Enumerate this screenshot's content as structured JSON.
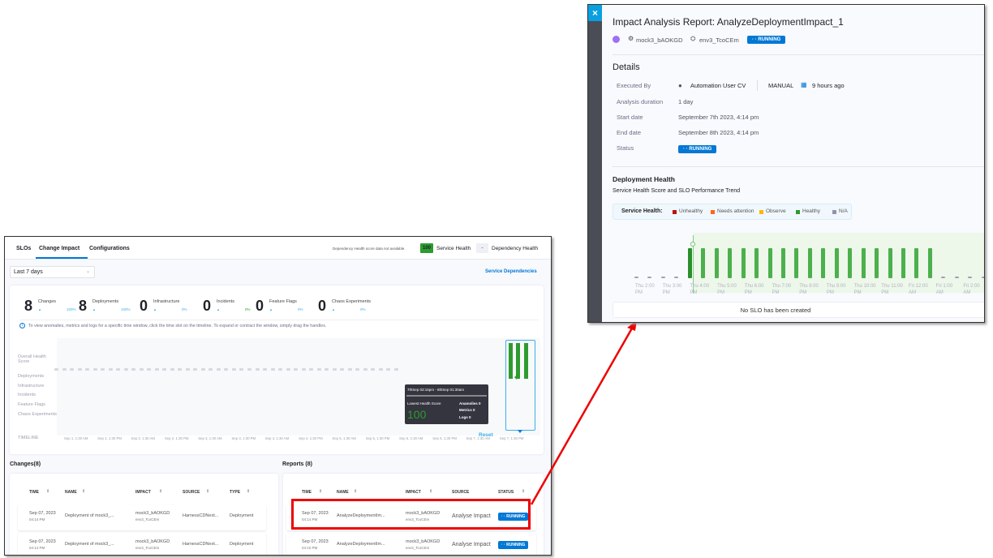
{
  "left": {
    "tabs": [
      "SLOs",
      "Change Impact",
      "Configurations"
    ],
    "active_tab": "Change Impact",
    "dependency_note": "Dependency Health score data not available.",
    "service_health_score": "100",
    "service_health_label": "Service Health",
    "dependency_health_score": "-",
    "dependency_health_label": "Dependency Health",
    "range_select": "Last 7 days",
    "service_dependencies_link": "Service Dependencies",
    "summary": [
      {
        "count": "8",
        "label": "Changes",
        "pct": "100%"
      },
      {
        "count": "8",
        "label": "Deployments",
        "pct": "100%"
      },
      {
        "count": "0",
        "label": "Infrastructure",
        "pct": "0%"
      },
      {
        "count": "0",
        "label": "Incidents",
        "pct": "0%"
      },
      {
        "count": "0",
        "label": "Feature Flags",
        "pct": "0%"
      },
      {
        "count": "0",
        "label": "Chaos Experiments",
        "pct": "0%"
      }
    ],
    "info": "To view anomalies, metrics and logs for a specific time window, click the time slot on the timeline. To expand or contract the window, simply drag the handles.",
    "row_labels": [
      "Overall Health Score",
      "Deployments",
      "Infrastructure",
      "Incidents",
      "Feature Flags",
      "Chaos Experiments"
    ],
    "timeline_label": "TIMELINE",
    "timeline_ticks": [
      "Sep 1, 1:30 AM",
      "Sep 1, 1:30 PM",
      "Sep 2, 1:30 AM",
      "Sep 2, 1:30 PM",
      "Sep 3, 1:30 AM",
      "Sep 3, 1:30 PM",
      "Sep 4, 1:30 AM",
      "Sep 4, 1:30 PM",
      "Sep 5, 1:30 AM",
      "Sep 5, 1:30 PM",
      "Sep 6, 1:30 AM",
      "Sep 6, 1:30 PM",
      "Sep 7, 1:30 AM",
      "Sep 7, 1:30 PM"
    ],
    "tooltip": {
      "range": "7thSep 03:15pm - 8thSep 01:30am",
      "lowest_label": "Lowest Health Score",
      "lowest_value": "100",
      "anomalies": "Anamolies 0",
      "metrics": "Metrics 0",
      "logs": "Logs 0"
    },
    "reset": "Reset",
    "changes": {
      "title": "Changes(8)",
      "headers": [
        "TIME",
        "NAME",
        "IMPACT",
        "SOURCE",
        "TYPE"
      ],
      "rows": [
        {
          "date": "Sep 07, 2023",
          "time": "04:14 PM",
          "name": "Deployment of mock3_...",
          "impact": "mock3_bAOKGD",
          "impact_env": "env3_TcoCEm",
          "source": "HarnessCDNext...",
          "type": "Deployment"
        },
        {
          "date": "Sep 07, 2023",
          "time": "04:14 PM",
          "name": "Deployment of mock3_...",
          "impact": "mock3_bAOKGD",
          "impact_env": "env3_TcoCEm",
          "source": "HarnessCDNext...",
          "type": "Deployment"
        }
      ]
    },
    "reports": {
      "title": "Reports (8)",
      "headers": [
        "TIME",
        "NAME",
        "IMPACT",
        "SOURCE",
        "STATUS"
      ],
      "rows": [
        {
          "date": "Sep 07, 2023",
          "time": "04:14 PM",
          "name": "AnalyzeDeploymentIm...",
          "impact": "mock3_bAOKGD",
          "impact_env": "env3_TcoCEm",
          "source": "Analyse Impact",
          "status": "RUNNING"
        },
        {
          "date": "Sep 07, 2023",
          "time": "04:10 PM",
          "name": "AnalyzeDeploymentIm...",
          "impact": "mock3_bAOKGD",
          "impact_env": "env3_TcoCEm",
          "source": "Analyse Impact",
          "status": "RUNNING"
        }
      ]
    }
  },
  "right": {
    "close": "×",
    "title": "Impact Analysis Report: AnalyzeDeploymentImpact_1",
    "service": "mock3_bAOKGD",
    "env": "env3_TcoCEm",
    "status": "RUNNING",
    "details_title": "Details",
    "details": {
      "executed_by_label": "Executed By",
      "executed_by": "Automation User CV",
      "trigger": "MANUAL",
      "ago": "9 hours ago",
      "duration_label": "Analysis duration",
      "duration": "1 day",
      "start_label": "Start date",
      "start": "September 7th 2023, 4:14 pm",
      "end_label": "End date",
      "end": "September 8th 2023, 4:14 pm",
      "status_label": "Status",
      "status": "RUNNING"
    },
    "health_title": "Deployment Health",
    "health_subtitle": "Service Health Score and SLO Performance Trend",
    "legend_title": "Service Health:",
    "legend": [
      {
        "label": "Unhealthy",
        "color": "#b41710"
      },
      {
        "label": "Needs attention",
        "color": "#ff661a"
      },
      {
        "label": "Observe",
        "color": "#ffb800"
      },
      {
        "label": "Healthy",
        "color": "#2e9b2e"
      },
      {
        "label": "N/A",
        "color": "#9293ab"
      }
    ],
    "x_ticks": [
      "Thu 2:00 PM",
      "Thu 3:00 PM",
      "Thu 4:00 PM",
      "Thu 5:00 PM",
      "Thu 6:00 PM",
      "Thu 7:00 PM",
      "Thu 8:00 PM",
      "Thu 9:00 PM",
      "Thu 10:00 PM",
      "Thu 11:00 PM",
      "Fri 12:00 AM",
      "Fri 1:00 AM",
      "Fri 2:00 AM"
    ],
    "no_slo": "No SLO has been created"
  },
  "chart_data": {
    "type": "bar",
    "title": "",
    "series": [
      {
        "values": [
          "N/A",
          "N/A",
          "N/A",
          "N/A",
          "Healthy",
          "Healthy",
          "Healthy",
          "Healthy",
          "Healthy",
          "Healthy",
          "Healthy",
          "Healthy",
          "Healthy",
          "Healthy",
          "Healthy",
          "Healthy",
          "Healthy",
          "Healthy",
          "Healthy",
          "Healthy",
          "Healthy",
          "Healthy",
          "Healthy",
          "N/A",
          "N/A",
          "N/A",
          "N/A"
        ]
      }
    ]
  }
}
